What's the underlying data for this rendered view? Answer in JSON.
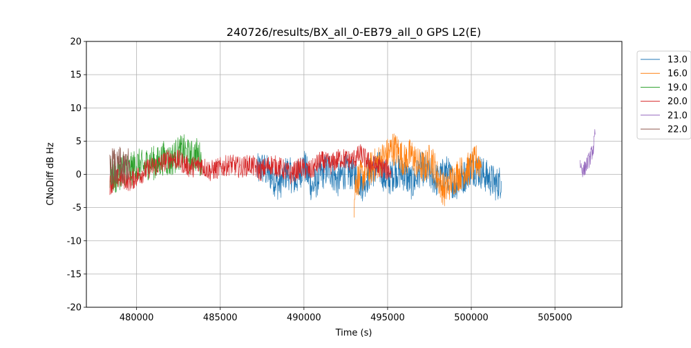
{
  "chart_data": {
    "type": "line",
    "title": "240726/results/BX_all_0-EB79_all_0 GPS L2(E)",
    "xlabel": "Time (s)",
    "ylabel": "CNoDiff dB Hz",
    "xlim": [
      477000,
      509000
    ],
    "ylim": [
      -20,
      20
    ],
    "xticks": [
      480000,
      485000,
      490000,
      495000,
      500000,
      505000
    ],
    "yticks": [
      -20,
      -15,
      -10,
      -5,
      0,
      5,
      10,
      15,
      20
    ],
    "grid": true,
    "legend_position": "outside-top-right",
    "series": [
      {
        "name": "13.0",
        "color": "#1f77b4",
        "x": [
          487200,
          487500,
          488000,
          488500,
          489000,
          489500,
          490000,
          490500,
          491000,
          491500,
          492000,
          492500,
          493000,
          493500,
          494000,
          494500,
          495000,
          495500,
          496000,
          496500,
          497000,
          497500,
          498000,
          498500,
          499000,
          499500,
          500000,
          500500,
          501000,
          501500,
          501800
        ],
        "y": [
          0.5,
          1.0,
          0.0,
          -1.5,
          0.5,
          -1.0,
          1.5,
          -2.0,
          0.0,
          1.0,
          -1.0,
          0.5,
          0.0,
          -1.5,
          0.5,
          1.0,
          -1.0,
          0.5,
          0.0,
          -1.5,
          1.0,
          0.0,
          -1.0,
          0.5,
          -1.5,
          -0.5,
          1.0,
          0.5,
          -0.5,
          -1.5,
          -1.0
        ],
        "band": 2.6
      },
      {
        "name": "16.0",
        "color": "#ff7f0e",
        "x": [
          493000,
          493100,
          495000,
          495300,
          495600,
          496000,
          496400,
          496800,
          497200,
          497600,
          498000,
          498400,
          498800,
          499200,
          499600,
          500000,
          500300,
          500600
        ],
        "y": [
          -4.5,
          -1.0,
          3.0,
          4.0,
          3.5,
          2.0,
          3.0,
          1.5,
          1.0,
          2.5,
          -0.5,
          -2.5,
          -1.0,
          0.0,
          0.5,
          1.0,
          2.0,
          1.5
        ],
        "band": 2.6
      },
      {
        "name": "19.0",
        "color": "#2ca02c",
        "x": [
          478400,
          478800,
          479200,
          479600,
          480000,
          480400,
          480800,
          481200,
          481600,
          482000,
          482400,
          482800,
          483200,
          483600,
          483900
        ],
        "y": [
          0.0,
          -0.5,
          1.0,
          0.5,
          1.5,
          1.0,
          2.0,
          1.5,
          2.5,
          2.0,
          3.0,
          3.5,
          2.5,
          3.0,
          2.0
        ],
        "band": 2.6
      },
      {
        "name": "20.0",
        "color": "#d62728",
        "x": [
          478400,
          479000,
          479600,
          480200,
          480800,
          481400,
          482000,
          482600,
          483200,
          483800,
          484400,
          485000,
          485600,
          486200,
          486800,
          487400,
          488000,
          488600,
          489200,
          489800,
          490400,
          491000,
          491600,
          492200,
          492800,
          493400,
          494000,
          494600,
          495200
        ],
        "y": [
          -1.5,
          -0.5,
          -1.0,
          0.0,
          1.0,
          1.5,
          2.5,
          2.0,
          1.0,
          1.5,
          0.5,
          1.0,
          1.5,
          1.0,
          1.5,
          0.5,
          1.5,
          1.0,
          0.0,
          1.0,
          0.5,
          2.0,
          1.5,
          2.5,
          2.0,
          3.0,
          1.5,
          1.0,
          0.5
        ],
        "band": 1.6
      },
      {
        "name": "21.0",
        "color": "#9467bd",
        "x": [
          506500,
          506700,
          506900,
          507100,
          507300,
          507400
        ],
        "y": [
          1.5,
          0.5,
          1.5,
          2.5,
          4.0,
          6.0
        ],
        "band": 1.2
      },
      {
        "name": "22.0",
        "color": "#8c564b",
        "x": [
          478400,
          478600,
          478800,
          479000,
          479200,
          479400,
          479600
        ],
        "y": [
          0.5,
          1.5,
          0.5,
          1.5,
          0.5,
          1.5,
          1.0
        ],
        "band": 2.8
      }
    ]
  }
}
